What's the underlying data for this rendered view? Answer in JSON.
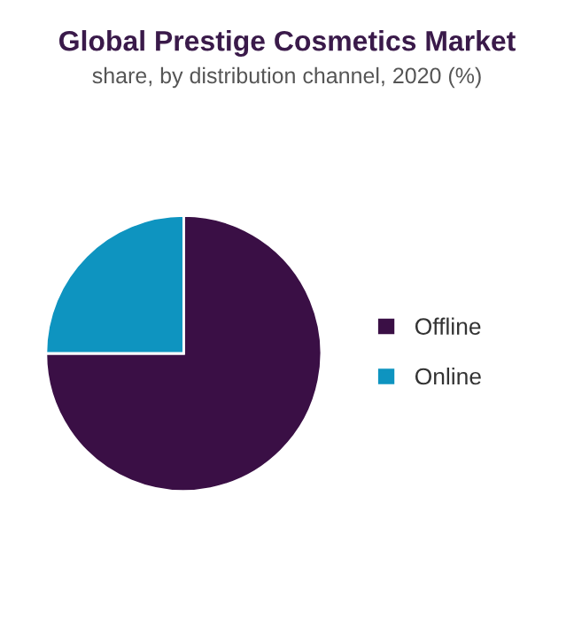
{
  "chart_data": {
    "type": "pie",
    "title": "Global Prestige Cosmetics Market",
    "subtitle": "share, by distribution channel, 2020 (%)",
    "categories": [
      "Offline",
      "Online"
    ],
    "values": [
      75,
      25
    ],
    "colors": [
      "#3a0f45",
      "#0e94c0"
    ],
    "legend": "right"
  }
}
